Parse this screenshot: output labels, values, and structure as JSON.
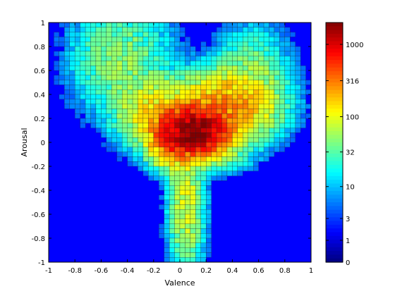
{
  "chart_data": {
    "type": "heatmap",
    "title": "",
    "xlabel": "Valence",
    "ylabel": "Arousal",
    "xlim": [
      -1,
      1
    ],
    "ylim": [
      -1,
      1
    ],
    "x_ticks": [
      "-1",
      "-0.8",
      "-0.6",
      "-0.4",
      "-0.2",
      "0",
      "0.2",
      "0.4",
      "0.6",
      "0.8",
      "1"
    ],
    "y_ticks": [
      "1",
      "0.8",
      "0.6",
      "0.4",
      "0.2",
      "0",
      "-0.2",
      "-0.4",
      "-0.6",
      "-0.8",
      "-1"
    ],
    "bins": 50,
    "colorscale": "jet",
    "color_scale_type": "log",
    "colorbar": {
      "range": [
        0,
        2000
      ],
      "tick_labels": [
        "1000",
        "316",
        "100",
        "32",
        "10",
        "3",
        "1",
        "0"
      ]
    },
    "density_clusters": [
      {
        "valence": 0.12,
        "arousal": 0.1,
        "peak_count": 1800,
        "spread_valence": 0.12,
        "spread_arousal": 0.1
      },
      {
        "valence": -0.05,
        "arousal": 0.05,
        "peak_count": 400,
        "spread_valence": 0.1,
        "spread_arousal": 0.12
      },
      {
        "valence": 0.35,
        "arousal": 0.3,
        "peak_count": 200,
        "spread_valence": 0.2,
        "spread_arousal": 0.15
      },
      {
        "valence": -0.2,
        "arousal": 0.25,
        "peak_count": 90,
        "spread_valence": 0.15,
        "spread_arousal": 0.15
      },
      {
        "valence": -0.45,
        "arousal": 0.7,
        "peak_count": 30,
        "spread_valence": 0.2,
        "spread_arousal": 0.25
      },
      {
        "valence": 0.55,
        "arousal": 0.6,
        "peak_count": 25,
        "spread_valence": 0.15,
        "spread_arousal": 0.2
      },
      {
        "valence": 0.05,
        "arousal": -0.5,
        "peak_count": 60,
        "spread_valence": 0.07,
        "spread_arousal": 0.3
      },
      {
        "valence": 0.3,
        "arousal": -0.1,
        "peak_count": 20,
        "spread_valence": 0.15,
        "spread_arousal": 0.08
      }
    ]
  }
}
